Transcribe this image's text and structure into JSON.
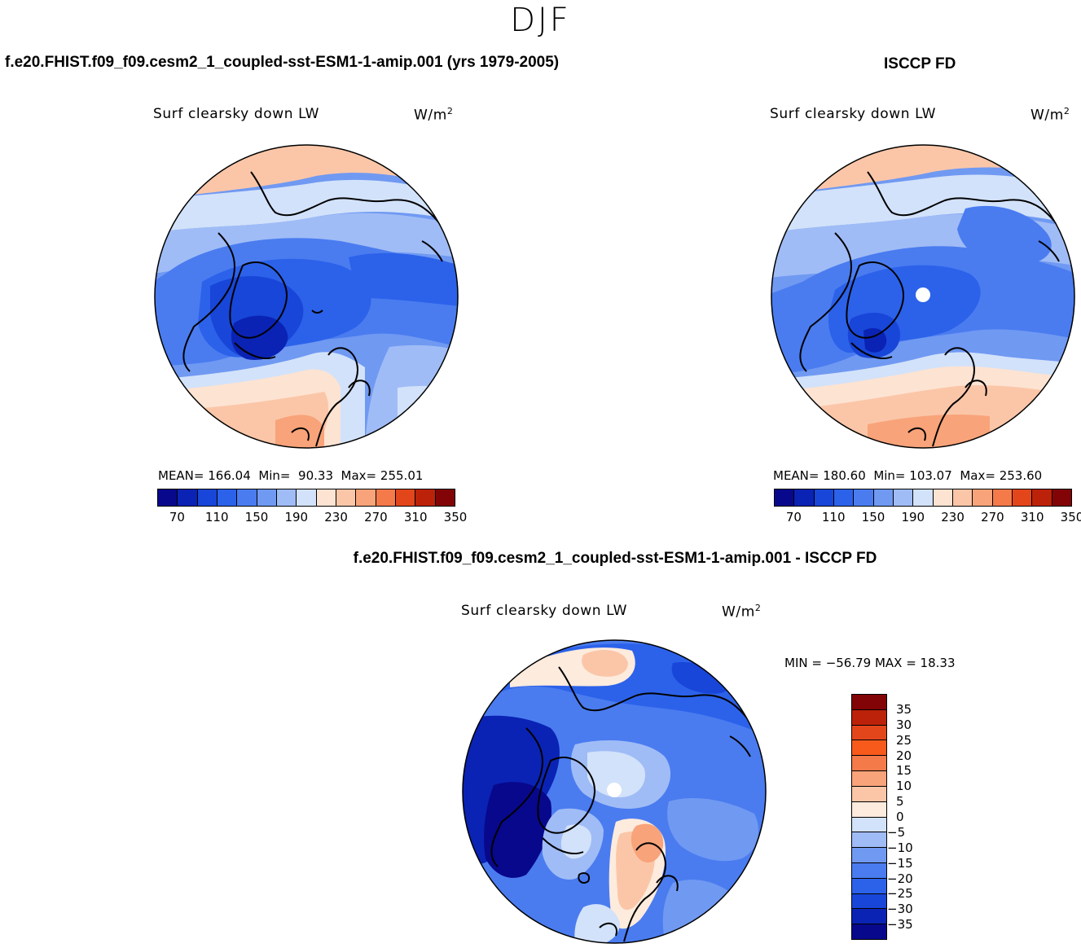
{
  "figure": {
    "season": "DJF"
  },
  "colors": {
    "abs_palette": [
      "#08088c",
      "#0a23b4",
      "#1846d8",
      "#2c62ea",
      "#4a7cf0",
      "#7099f2",
      "#a0bcf6",
      "#d2e2fa",
      "#fde3d2",
      "#fbc6a8",
      "#f8a37a",
      "#f47a4a",
      "#e4461c",
      "#bc2209",
      "#820406"
    ],
    "diff_palette": [
      "#08088c",
      "#0a23b4",
      "#1846d8",
      "#2c62ea",
      "#4a7cf0",
      "#7099f2",
      "#a0bcf6",
      "#d2e2fa",
      "#fdebdd",
      "#fbc6a8",
      "#f8a37a",
      "#f47a4a",
      "#f85a1c",
      "#e4461c",
      "#bc2209",
      "#820406"
    ]
  },
  "chart_data": [
    {
      "type": "heatmap",
      "title": "f.e20.FHIST.f09_f09.cesm2_1_coupled-sst-ESM1-1-amip.001 (yrs 1979-2005)",
      "variable": "Surf clearsky down LW",
      "units": "W/m",
      "units_exp": "2",
      "stats": {
        "mean_label": "MEAN=",
        "mean": "166.04",
        "min_label": "Min=",
        "min": "90.33",
        "max_label": "Max=",
        "max": "255.01"
      },
      "colorbar": {
        "levels": [
          50,
          70,
          90,
          110,
          130,
          150,
          170,
          190,
          210,
          230,
          250,
          270,
          290,
          310,
          330,
          350,
          370
        ],
        "tick_labels": [
          "70",
          "110",
          "150",
          "190",
          "230",
          "270",
          "310",
          "350"
        ]
      }
    },
    {
      "type": "heatmap",
      "title": "ISCCP FD",
      "variable": "Surf clearsky down LW",
      "units": "W/m",
      "units_exp": "2",
      "stats": {
        "mean_label": "MEAN=",
        "mean": "180.60",
        "min_label": "Min=",
        "min": "103.07",
        "max_label": "Max=",
        "max": "253.60"
      },
      "colorbar": {
        "levels": [
          50,
          70,
          90,
          110,
          130,
          150,
          170,
          190,
          210,
          230,
          250,
          270,
          290,
          310,
          330,
          350,
          370
        ],
        "tick_labels": [
          "70",
          "110",
          "150",
          "190",
          "230",
          "270",
          "310",
          "350"
        ]
      }
    },
    {
      "type": "heatmap",
      "title": "f.e20.FHIST.f09_f09.cesm2_1_coupled-sst-ESM1-1-amip.001 - ISCCP FD",
      "variable": "Surf clearsky down LW",
      "units": "W/m",
      "units_exp": "2",
      "stats": {
        "text": "MIN = −56.79 MAX =   18.33",
        "min": -56.79,
        "max": 18.33
      },
      "colorbar": {
        "levels": [
          -40,
          -35,
          -30,
          -25,
          -20,
          -15,
          -10,
          -5,
          0,
          5,
          10,
          15,
          20,
          25,
          30,
          35,
          40
        ],
        "tick_labels": [
          "35",
          "30",
          "25",
          "20",
          "15",
          "10",
          "5",
          "0",
          "−5",
          "−10",
          "−15",
          "−20",
          "−25",
          "−30",
          "−35"
        ]
      }
    }
  ]
}
